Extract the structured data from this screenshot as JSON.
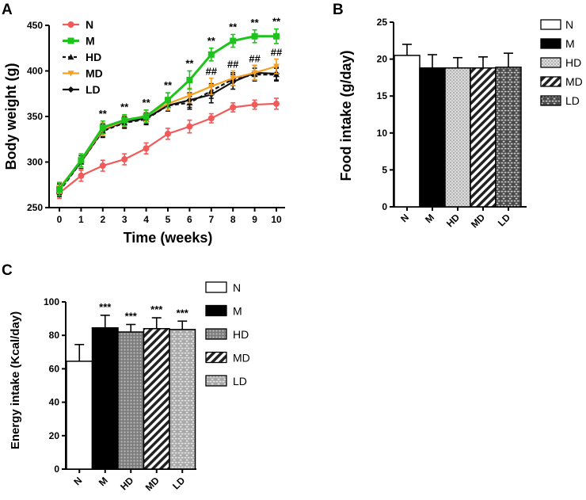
{
  "panels": {
    "a": "A",
    "b": "B",
    "c": "C"
  },
  "colors": {
    "N": "#f05a5a",
    "M": "#1ec31e",
    "HD": "#111111",
    "MD": "#f5a020",
    "LD": "#111111"
  },
  "chart_data": [
    {
      "type": "line",
      "panel": "A",
      "xlabel": "Time (weeks)",
      "ylabel": "Body weight (g)",
      "x": [
        0,
        1,
        2,
        3,
        4,
        5,
        6,
        7,
        8,
        9,
        10
      ],
      "x_ticks": [
        "0",
        "1",
        "2",
        "3",
        "4",
        "5",
        "6",
        "7",
        "8",
        "9",
        "10"
      ],
      "ylim": [
        250,
        450
      ],
      "y_ticks": [
        "250",
        "300",
        "350",
        "400",
        "450"
      ],
      "legend": "top-left",
      "series": [
        {
          "name": "N",
          "values": [
            266,
            285,
            296,
            303,
            315,
            331,
            339,
            348,
            360,
            363,
            364
          ],
          "err": [
            6,
            6,
            6,
            6,
            6,
            6,
            7,
            5,
            5,
            5,
            6
          ]
        },
        {
          "name": "M",
          "values": [
            270,
            302,
            338,
            346,
            350,
            368,
            390,
            418,
            433,
            438,
            438
          ],
          "err": [
            7,
            7,
            7,
            6,
            7,
            8,
            10,
            7,
            7,
            7,
            8
          ]
        },
        {
          "name": "HD",
          "values": [
            268,
            300,
            334,
            343,
            347,
            362,
            365,
            378,
            391,
            396,
            396
          ],
          "err": [
            6,
            7,
            7,
            6,
            6,
            6,
            7,
            8,
            7,
            7,
            7
          ]
        },
        {
          "name": "MD",
          "values": [
            272,
            301,
            336,
            345,
            351,
            364,
            373,
            383,
            392,
            398,
            405
          ],
          "err": [
            6,
            7,
            7,
            6,
            6,
            7,
            8,
            9,
            8,
            8,
            8
          ]
        },
        {
          "name": "LD",
          "values": [
            270,
            300,
            335,
            344,
            348,
            362,
            368,
            374,
            388,
            398,
            397
          ],
          "err": [
            6,
            7,
            7,
            6,
            6,
            6,
            8,
            9,
            8,
            8,
            7
          ]
        }
      ],
      "annotations": [
        {
          "x": 2,
          "text": "**"
        },
        {
          "x": 3,
          "text": "**"
        },
        {
          "x": 4,
          "text": "**"
        },
        {
          "x": 5,
          "text": "**"
        },
        {
          "x": 6,
          "text": "**"
        },
        {
          "x": 7,
          "text": "**"
        },
        {
          "x": 8,
          "text": "**"
        },
        {
          "x": 9,
          "text": "**"
        },
        {
          "x": 10,
          "text": "**"
        },
        {
          "x": 7,
          "text": "##"
        },
        {
          "x": 8,
          "text": "##"
        },
        {
          "x": 9,
          "text": "##"
        },
        {
          "x": 10,
          "text": "##"
        }
      ]
    },
    {
      "type": "bar",
      "panel": "B",
      "xlabel": "",
      "ylabel": "Food intake (g/day)",
      "categories": [
        "N",
        "M",
        "HD",
        "MD",
        "LD"
      ],
      "values": [
        20.5,
        18.8,
        18.8,
        18.8,
        18.9
      ],
      "err": [
        1.5,
        1.8,
        1.4,
        1.5,
        1.9
      ],
      "ylim": [
        0,
        25
      ],
      "y_ticks": [
        "0",
        "5",
        "10",
        "15",
        "20",
        "25"
      ],
      "legend": "top-right"
    },
    {
      "type": "bar",
      "panel": "C",
      "xlabel": "",
      "ylabel": "Energy intake (Kcal/day)",
      "categories": [
        "N",
        "M",
        "HD",
        "MD",
        "LD"
      ],
      "values": [
        64.5,
        84.5,
        82.0,
        84.0,
        83.5
      ],
      "err": [
        10,
        7.5,
        4.5,
        6.5,
        5.0
      ],
      "significance": [
        "",
        "***",
        "***",
        "***",
        "***"
      ],
      "ylim": [
        0,
        100
      ],
      "y_ticks": [
        "0",
        "20",
        "40",
        "60",
        "80",
        "100"
      ],
      "legend": "right"
    }
  ]
}
